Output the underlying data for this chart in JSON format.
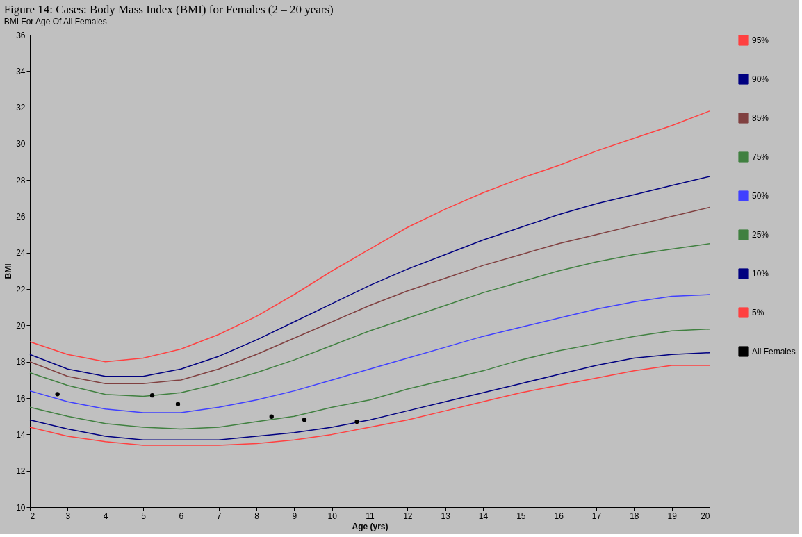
{
  "chart_data": {
    "type": "line",
    "title": "Figure 14: Cases: Body Mass Index (BMI) for Females (2 – 20 years)",
    "subtitle": "BMI For Age Of All Females",
    "xlabel": "Age (yrs)",
    "ylabel": "BMI",
    "x": [
      2,
      3,
      4,
      5,
      6,
      7,
      8,
      9,
      10,
      11,
      12,
      13,
      14,
      15,
      16,
      17,
      18,
      19,
      20
    ],
    "series": [
      {
        "name": "95%",
        "color": "#ff4040",
        "values": [
          19.1,
          18.4,
          18.0,
          18.2,
          18.7,
          19.5,
          20.5,
          21.7,
          23.0,
          24.2,
          25.4,
          26.4,
          27.3,
          28.1,
          28.8,
          29.6,
          30.3,
          31.0,
          31.8
        ]
      },
      {
        "name": "90%",
        "color": "#000080",
        "values": [
          18.4,
          17.6,
          17.2,
          17.2,
          17.6,
          18.3,
          19.2,
          20.2,
          21.2,
          22.2,
          23.1,
          23.9,
          24.7,
          25.4,
          26.1,
          26.7,
          27.2,
          27.7,
          28.2
        ]
      },
      {
        "name": "85%",
        "color": "#804040",
        "values": [
          18.0,
          17.2,
          16.8,
          16.8,
          17.0,
          17.6,
          18.4,
          19.3,
          20.2,
          21.1,
          21.9,
          22.6,
          23.3,
          23.9,
          24.5,
          25.0,
          25.5,
          26.0,
          26.5
        ]
      },
      {
        "name": "75%",
        "color": "#408040",
        "values": [
          17.4,
          16.7,
          16.2,
          16.1,
          16.3,
          16.8,
          17.4,
          18.1,
          18.9,
          19.7,
          20.4,
          21.1,
          21.8,
          22.4,
          23.0,
          23.5,
          23.9,
          24.2,
          24.5
        ]
      },
      {
        "name": "50%",
        "color": "#4040ff",
        "values": [
          16.4,
          15.8,
          15.4,
          15.2,
          15.2,
          15.5,
          15.9,
          16.4,
          17.0,
          17.6,
          18.2,
          18.8,
          19.4,
          19.9,
          20.4,
          20.9,
          21.3,
          21.6,
          21.7
        ]
      },
      {
        "name": "25%",
        "color": "#408040",
        "values": [
          15.5,
          15.0,
          14.6,
          14.4,
          14.3,
          14.4,
          14.7,
          15.0,
          15.5,
          15.9,
          16.5,
          17.0,
          17.5,
          18.1,
          18.6,
          19.0,
          19.4,
          19.7,
          19.8
        ]
      },
      {
        "name": "10%",
        "color": "#000080",
        "values": [
          14.8,
          14.3,
          13.9,
          13.7,
          13.7,
          13.7,
          13.9,
          14.1,
          14.4,
          14.8,
          15.3,
          15.8,
          16.3,
          16.8,
          17.3,
          17.8,
          18.2,
          18.4,
          18.5
        ]
      },
      {
        "name": "5%",
        "color": "#ff4040",
        "values": [
          14.4,
          13.9,
          13.6,
          13.4,
          13.4,
          13.4,
          13.5,
          13.7,
          14.0,
          14.4,
          14.8,
          15.3,
          15.8,
          16.3,
          16.7,
          17.1,
          17.5,
          17.8,
          17.8
        ]
      },
      {
        "name": "All Females",
        "type": "scatter",
        "marker": "circle",
        "color": "#000000",
        "x": [
          2.73,
          5.24,
          5.92,
          8.4,
          9.27,
          10.66
        ],
        "values": [
          16.22,
          16.15,
          15.67,
          14.98,
          14.81,
          14.7
        ]
      }
    ],
    "xlim": [
      2,
      20
    ],
    "xticks": [
      2,
      3,
      4,
      5,
      6,
      7,
      8,
      9,
      10,
      11,
      12,
      13,
      14,
      15,
      16,
      17,
      18,
      19,
      20
    ],
    "ylim": [
      10,
      36
    ],
    "yticks": [
      10,
      12,
      14,
      16,
      18,
      20,
      22,
      24,
      26,
      28,
      30,
      32,
      34,
      36
    ],
    "grid": false,
    "legend": "right",
    "marker": "none",
    "line_style": "solid"
  }
}
